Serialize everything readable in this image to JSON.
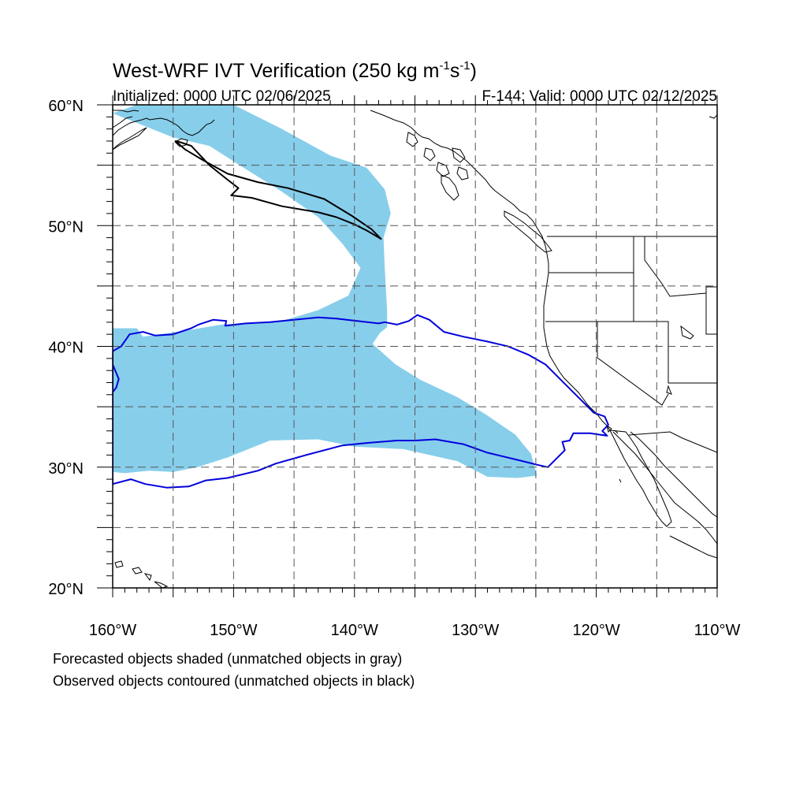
{
  "title": {
    "main": "West-WRF IVT Verification (250 kg m",
    "exp1": "-1",
    "mid": "s",
    "exp2": "-1",
    "close": ")"
  },
  "subtitle_left": "Initialized: 0000 UTC 02/06/2025",
  "subtitle_right": "F-144: Valid: 0000 UTC 02/12/2025",
  "chart_data": {
    "type": "map",
    "projection": "cylindrical equidistant",
    "lon_range": [
      -160,
      -110
    ],
    "lat_range": [
      20,
      60
    ],
    "grid": true,
    "lon_ticks": [
      {
        "value": -160,
        "label": "160°W"
      },
      {
        "value": -150,
        "label": "150°W"
      },
      {
        "value": -140,
        "label": "140°W"
      },
      {
        "value": -130,
        "label": "130°W"
      },
      {
        "value": -120,
        "label": "120°W"
      },
      {
        "value": -110,
        "label": "110°W"
      }
    ],
    "lat_ticks": [
      {
        "value": 60,
        "label": "60°N"
      },
      {
        "value": 50,
        "label": "50°N"
      },
      {
        "value": 40,
        "label": "40°N"
      },
      {
        "value": 30,
        "label": "30°N"
      },
      {
        "value": 20,
        "label": "20°N"
      }
    ],
    "colors": {
      "forecast_matched_fill": "#87ceeb",
      "observed_matched_contour": "#0000dd",
      "observed_unmatched_contour": "#000000",
      "coastline": "#000000"
    },
    "forecast_object": {
      "category": "matched",
      "polygon_lonlat": [
        [
          -160,
          59.3
        ],
        [
          -158,
          60
        ],
        [
          -150,
          60
        ],
        [
          -146,
          58
        ],
        [
          -142,
          55.8
        ],
        [
          -139,
          54.8
        ],
        [
          -137.5,
          53
        ],
        [
          -137,
          51
        ],
        [
          -137.6,
          49
        ],
        [
          -137.5,
          46.5
        ],
        [
          -137.3,
          43
        ],
        [
          -137.3,
          41.6
        ],
        [
          -137.9,
          41.1
        ],
        [
          -138.5,
          40.2
        ],
        [
          -136.6,
          38.5
        ],
        [
          -134.5,
          37.2
        ],
        [
          -131.5,
          35.8
        ],
        [
          -129.2,
          34.4
        ],
        [
          -126.7,
          32.7
        ],
        [
          -125.4,
          31.1
        ],
        [
          -124.9,
          29.3
        ],
        [
          -126.5,
          29.1
        ],
        [
          -129,
          29.2
        ],
        [
          -131.5,
          30.5
        ],
        [
          -136,
          31.5
        ],
        [
          -140,
          31.7
        ],
        [
          -143,
          32.3
        ],
        [
          -147,
          32.2
        ],
        [
          -150.5,
          30.8
        ],
        [
          -153,
          30
        ],
        [
          -155,
          29.6
        ],
        [
          -157,
          29.7
        ],
        [
          -159,
          29.5
        ],
        [
          -160,
          29.6
        ],
        [
          -160,
          41.5
        ],
        [
          -158,
          41.5
        ],
        [
          -157.5,
          40.8
        ],
        [
          -154,
          41.3
        ],
        [
          -151,
          41.8
        ],
        [
          -146,
          42.1
        ],
        [
          -143,
          43
        ],
        [
          -140.5,
          44.2
        ],
        [
          -139.5,
          46.5
        ],
        [
          -141,
          48.5
        ],
        [
          -143,
          50.7
        ],
        [
          -146,
          52.8
        ],
        [
          -149.5,
          55
        ],
        [
          -152,
          56.6
        ],
        [
          -155,
          57.3
        ]
      ]
    },
    "observed_objects": [
      {
        "category": "matched",
        "polygon_lonlat": [
          [
            -160,
            39.6
          ],
          [
            -159.3,
            40
          ],
          [
            -158.6,
            41
          ],
          [
            -157.5,
            41.2
          ],
          [
            -156.5,
            40.9
          ],
          [
            -155,
            41
          ],
          [
            -153.5,
            41.5
          ],
          [
            -152.9,
            41.8
          ],
          [
            -151.7,
            42.2
          ],
          [
            -150.6,
            42.1
          ],
          [
            -150.7,
            41.7
          ],
          [
            -149,
            41.9
          ],
          [
            -147,
            42
          ],
          [
            -145,
            42.2
          ],
          [
            -143,
            42.4
          ],
          [
            -141.5,
            42.3
          ],
          [
            -139.8,
            42.1
          ],
          [
            -138,
            41.9
          ],
          [
            -137.5,
            42
          ],
          [
            -136.5,
            41.8
          ],
          [
            -135.5,
            42.1
          ],
          [
            -134.8,
            42.6
          ],
          [
            -133.8,
            42.2
          ],
          [
            -132.6,
            41.2
          ],
          [
            -131,
            40.8
          ],
          [
            -129,
            40.4
          ],
          [
            -127.3,
            40
          ],
          [
            -125.6,
            39.3
          ],
          [
            -124.2,
            38.5
          ],
          [
            -122.9,
            37.2
          ],
          [
            -121.8,
            36.1
          ],
          [
            -121,
            35.3
          ],
          [
            -120.2,
            34.5
          ],
          [
            -119.3,
            34.2
          ],
          [
            -119,
            33.5
          ],
          [
            -119.5,
            33
          ],
          [
            -119.1,
            32.6
          ],
          [
            -120.5,
            32.8
          ],
          [
            -121.9,
            32.8
          ],
          [
            -122.2,
            32.2
          ],
          [
            -122.8,
            32.1
          ],
          [
            -122.6,
            31.4
          ],
          [
            -123.5,
            30.5
          ],
          [
            -124,
            30
          ],
          [
            -124.9,
            30.2
          ],
          [
            -126.5,
            30.6
          ],
          [
            -129,
            31.2
          ],
          [
            -131,
            31.9
          ],
          [
            -133.3,
            32.3
          ],
          [
            -135,
            32.2
          ],
          [
            -136.5,
            32.2
          ],
          [
            -139,
            32
          ],
          [
            -141,
            31.8
          ],
          [
            -144,
            31
          ],
          [
            -146.5,
            30.3
          ],
          [
            -148,
            29.7
          ],
          [
            -150.5,
            29.1
          ],
          [
            -152.3,
            28.9
          ],
          [
            -153.7,
            28.4
          ],
          [
            -155.5,
            28.3
          ],
          [
            -157.3,
            28.6
          ],
          [
            -158.5,
            29
          ],
          [
            -160,
            28.6
          ]
        ]
      },
      {
        "category": "matched",
        "polygon_lonlat": [
          [
            -160,
            38.5
          ],
          [
            -159.5,
            37.3
          ],
          [
            -159.7,
            36.6
          ],
          [
            -160,
            36.2
          ]
        ],
        "open": true
      },
      {
        "category": "unmatched",
        "polygon_lonlat": [
          [
            -154.4,
            56.9
          ],
          [
            -153.5,
            56.6
          ],
          [
            -152,
            55
          ],
          [
            -150.5,
            53.8
          ],
          [
            -149.6,
            53.1
          ],
          [
            -150.2,
            52.5
          ],
          [
            -148.5,
            52.3
          ],
          [
            -146,
            51.6
          ],
          [
            -143,
            51.1
          ],
          [
            -141.5,
            50.7
          ],
          [
            -140,
            50.1
          ],
          [
            -139,
            49.6
          ],
          [
            -137.8,
            48.9
          ],
          [
            -138.6,
            49.7
          ],
          [
            -140.2,
            50.8
          ],
          [
            -142.5,
            52.2
          ],
          [
            -145.5,
            53.1
          ],
          [
            -148,
            53.6
          ],
          [
            -150.5,
            54.3
          ],
          [
            -152.5,
            55.4
          ],
          [
            -154,
            56.3
          ],
          [
            -154.8,
            57
          ]
        ]
      }
    ]
  },
  "caption": [
    "Forecasted objects shaded (unmatched objects in gray)",
    "Observed objects contoured (unmatched objects in black)"
  ]
}
